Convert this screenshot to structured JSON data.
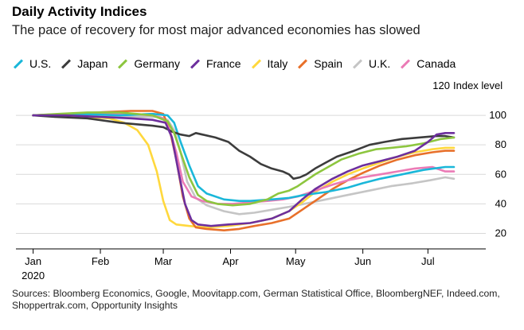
{
  "chart_data": {
    "type": "line",
    "title": "Daily Activity Indices",
    "subtitle": "The pace of recovery for most major advanced economies has slowed",
    "ylabel": "Index level",
    "ylim": [
      10,
      120
    ],
    "yticks": [
      "120",
      "100",
      "80",
      "60",
      "40",
      "20"
    ],
    "y_tick_values": [
      120,
      100,
      80,
      60,
      40,
      20
    ],
    "x_tick_labels": [
      "Jan",
      "Feb",
      "Mar",
      "Apr",
      "May",
      "Jun",
      "Jul"
    ],
    "x_tick_values": [
      0,
      31,
      60,
      91,
      121,
      152,
      182
    ],
    "x_year_label": "2020",
    "x_range": [
      -5,
      205
    ],
    "grid": true,
    "legend_position": "top-left",
    "series": [
      {
        "name": "U.S.",
        "color": "#1ab7d9",
        "points": [
          [
            0,
            100
          ],
          [
            20,
            101
          ],
          [
            40,
            100
          ],
          [
            55,
            101
          ],
          [
            62,
            100
          ],
          [
            65,
            95
          ],
          [
            68,
            82
          ],
          [
            72,
            66
          ],
          [
            76,
            52
          ],
          [
            80,
            47
          ],
          [
            88,
            43
          ],
          [
            95,
            42
          ],
          [
            100,
            42
          ],
          [
            110,
            43
          ],
          [
            118,
            44
          ],
          [
            125,
            46
          ],
          [
            135,
            48
          ],
          [
            145,
            51
          ],
          [
            152,
            54
          ],
          [
            160,
            57
          ],
          [
            170,
            60
          ],
          [
            180,
            63
          ],
          [
            190,
            65
          ],
          [
            194,
            65
          ]
        ]
      },
      {
        "name": "Japan",
        "color": "#3c3c3c",
        "points": [
          [
            0,
            100
          ],
          [
            10,
            99
          ],
          [
            25,
            98
          ],
          [
            40,
            95
          ],
          [
            55,
            93
          ],
          [
            60,
            92
          ],
          [
            64,
            89
          ],
          [
            68,
            87
          ],
          [
            72,
            86
          ],
          [
            75,
            88
          ],
          [
            78,
            87
          ],
          [
            84,
            85
          ],
          [
            90,
            82
          ],
          [
            95,
            76
          ],
          [
            100,
            72
          ],
          [
            105,
            67
          ],
          [
            110,
            64
          ],
          [
            115,
            62
          ],
          [
            118,
            60
          ],
          [
            120,
            57
          ],
          [
            123,
            58
          ],
          [
            126,
            60
          ],
          [
            130,
            64
          ],
          [
            135,
            68
          ],
          [
            140,
            72
          ],
          [
            148,
            76
          ],
          [
            155,
            80
          ],
          [
            162,
            82
          ],
          [
            170,
            84
          ],
          [
            178,
            85
          ],
          [
            186,
            86
          ],
          [
            190,
            86
          ],
          [
            194,
            85
          ]
        ]
      },
      {
        "name": "Germany",
        "color": "#8dc63f",
        "points": [
          [
            0,
            100
          ],
          [
            12,
            101
          ],
          [
            25,
            102
          ],
          [
            40,
            102
          ],
          [
            55,
            100
          ],
          [
            62,
            96
          ],
          [
            65,
            88
          ],
          [
            68,
            75
          ],
          [
            72,
            58
          ],
          [
            76,
            46
          ],
          [
            80,
            42
          ],
          [
            85,
            40
          ],
          [
            92,
            39
          ],
          [
            100,
            40
          ],
          [
            108,
            43
          ],
          [
            113,
            47
          ],
          [
            118,
            49
          ],
          [
            122,
            52
          ],
          [
            126,
            56
          ],
          [
            130,
            60
          ],
          [
            136,
            65
          ],
          [
            142,
            70
          ],
          [
            150,
            74
          ],
          [
            158,
            77
          ],
          [
            165,
            78
          ],
          [
            172,
            79
          ],
          [
            180,
            81
          ],
          [
            188,
            84
          ],
          [
            194,
            85
          ]
        ]
      },
      {
        "name": "France",
        "color": "#6d2f9d",
        "points": [
          [
            0,
            100
          ],
          [
            15,
            100
          ],
          [
            30,
            99
          ],
          [
            45,
            98
          ],
          [
            55,
            97
          ],
          [
            61,
            95
          ],
          [
            64,
            85
          ],
          [
            67,
            62
          ],
          [
            70,
            40
          ],
          [
            73,
            29
          ],
          [
            76,
            26
          ],
          [
            82,
            25
          ],
          [
            90,
            26
          ],
          [
            100,
            27
          ],
          [
            110,
            30
          ],
          [
            118,
            35
          ],
          [
            124,
            43
          ],
          [
            130,
            50
          ],
          [
            138,
            57
          ],
          [
            145,
            62
          ],
          [
            152,
            66
          ],
          [
            160,
            69
          ],
          [
            168,
            72
          ],
          [
            176,
            76
          ],
          [
            182,
            82
          ],
          [
            186,
            87
          ],
          [
            190,
            88
          ],
          [
            194,
            88
          ]
        ]
      },
      {
        "name": "Italy",
        "color": "#ffd83d",
        "points": [
          [
            0,
            100
          ],
          [
            10,
            100
          ],
          [
            25,
            99
          ],
          [
            35,
            98
          ],
          [
            42,
            95
          ],
          [
            48,
            90
          ],
          [
            53,
            80
          ],
          [
            57,
            62
          ],
          [
            60,
            42
          ],
          [
            63,
            29
          ],
          [
            66,
            26
          ],
          [
            72,
            25
          ],
          [
            80,
            24
          ],
          [
            90,
            25
          ],
          [
            100,
            27
          ],
          [
            110,
            30
          ],
          [
            118,
            35
          ],
          [
            124,
            41
          ],
          [
            130,
            48
          ],
          [
            138,
            55
          ],
          [
            145,
            60
          ],
          [
            152,
            64
          ],
          [
            160,
            68
          ],
          [
            168,
            72
          ],
          [
            176,
            75
          ],
          [
            184,
            77
          ],
          [
            190,
            78
          ],
          [
            194,
            78
          ]
        ]
      },
      {
        "name": "Spain",
        "color": "#e8702a",
        "points": [
          [
            0,
            100
          ],
          [
            15,
            101
          ],
          [
            30,
            102
          ],
          [
            45,
            103
          ],
          [
            55,
            103
          ],
          [
            60,
            101
          ],
          [
            63,
            90
          ],
          [
            66,
            70
          ],
          [
            69,
            45
          ],
          [
            72,
            30
          ],
          [
            75,
            24
          ],
          [
            80,
            23
          ],
          [
            88,
            22
          ],
          [
            95,
            23
          ],
          [
            102,
            25
          ],
          [
            110,
            27
          ],
          [
            118,
            30
          ],
          [
            124,
            36
          ],
          [
            130,
            42
          ],
          [
            138,
            50
          ],
          [
            145,
            56
          ],
          [
            152,
            61
          ],
          [
            160,
            66
          ],
          [
            168,
            70
          ],
          [
            176,
            73
          ],
          [
            184,
            75
          ],
          [
            190,
            76
          ],
          [
            194,
            76
          ]
        ]
      },
      {
        "name": "U.K.",
        "color": "#c5c5c5",
        "points": [
          [
            0,
            100
          ],
          [
            15,
            100
          ],
          [
            30,
            99
          ],
          [
            45,
            99
          ],
          [
            58,
            99
          ],
          [
            62,
            97
          ],
          [
            65,
            90
          ],
          [
            68,
            75
          ],
          [
            71,
            55
          ],
          [
            75,
            44
          ],
          [
            80,
            39
          ],
          [
            88,
            35
          ],
          [
            95,
            33
          ],
          [
            102,
            34
          ],
          [
            110,
            36
          ],
          [
            118,
            38
          ],
          [
            125,
            40
          ],
          [
            135,
            43
          ],
          [
            145,
            46
          ],
          [
            155,
            49
          ],
          [
            165,
            52
          ],
          [
            175,
            54
          ],
          [
            183,
            56
          ],
          [
            190,
            58
          ],
          [
            194,
            57
          ]
        ]
      },
      {
        "name": "Canada",
        "color": "#eb7bb6",
        "points": [
          [
            0,
            100
          ],
          [
            15,
            100
          ],
          [
            30,
            101
          ],
          [
            45,
            101
          ],
          [
            55,
            100
          ],
          [
            60,
            98
          ],
          [
            63,
            90
          ],
          [
            66,
            75
          ],
          [
            69,
            55
          ],
          [
            73,
            45
          ],
          [
            78,
            42
          ],
          [
            85,
            40
          ],
          [
            92,
            40
          ],
          [
            100,
            41
          ],
          [
            108,
            42
          ],
          [
            115,
            43
          ],
          [
            122,
            45
          ],
          [
            130,
            49
          ],
          [
            138,
            53
          ],
          [
            145,
            56
          ],
          [
            152,
            58
          ],
          [
            160,
            60
          ],
          [
            168,
            62
          ],
          [
            176,
            64
          ],
          [
            184,
            65
          ],
          [
            190,
            62
          ],
          [
            194,
            62
          ]
        ]
      }
    ]
  },
  "sources": "Sources: Bloomberg Economics, Google, Moovitapp.com, German Statistical Office, BloombergNEF, Indeed.com, Shoppertrak.com, Opportunity Insights"
}
